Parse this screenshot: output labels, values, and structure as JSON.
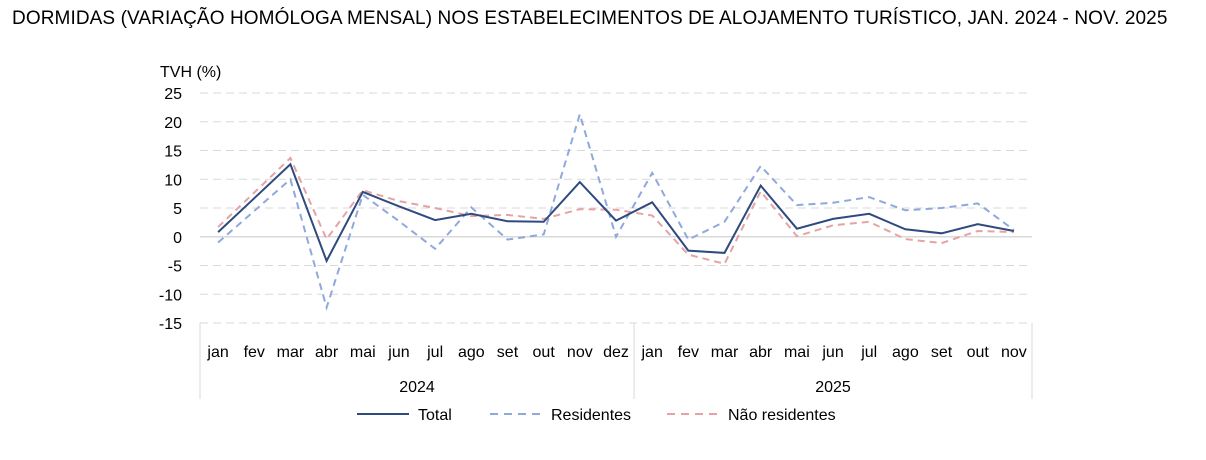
{
  "title": "DORMIDAS (VARIAÇÃO HOMÓLOGA MENSAL) NOS ESTABELECIMENTOS DE ALOJAMENTO TURÍSTICO, JAN. 2024 - NOV. 2025",
  "chart_data": {
    "type": "line",
    "title": "DORMIDAS (VARIAÇÃO HOMÓLOGA MENSAL) NOS ESTABELECIMENTOS DE ALOJAMENTO TURÍSTICO, JAN. 2024 - NOV. 2025",
    "ylabel": "TVH (%)",
    "xlabel": "",
    "ylim": [
      -15,
      25
    ],
    "yticks": [
      25,
      20,
      15,
      10,
      5,
      0,
      -5,
      -10,
      -15
    ],
    "grid": true,
    "legend_position": "bottom",
    "year_groups": [
      {
        "label": "2024",
        "months": 12
      },
      {
        "label": "2025",
        "months": 11
      }
    ],
    "categories": [
      "jan",
      "fev",
      "mar",
      "abr",
      "mai",
      "jun",
      "jul",
      "ago",
      "set",
      "out",
      "nov",
      "dez",
      "jan",
      "fev",
      "mar",
      "abr",
      "mai",
      "jun",
      "jul",
      "ago",
      "set",
      "out",
      "nov"
    ],
    "series": [
      {
        "name": "Total",
        "color": "#2F4A7F",
        "dash": "solid",
        "values": [
          0.8,
          6.7,
          12.6,
          -4.2,
          7.8,
          5.3,
          2.9,
          4.0,
          2.7,
          2.6,
          9.5,
          2.8,
          6.0,
          -2.4,
          -2.8,
          8.9,
          1.4,
          3.1,
          4.0,
          1.3,
          0.6,
          2.2,
          1.0
        ]
      },
      {
        "name": "Residentes",
        "color": "#8EA9DB",
        "dash": "dashed",
        "values": [
          -1.0,
          4.5,
          10.0,
          -12.3,
          7.3,
          2.7,
          -2.1,
          5.1,
          -0.5,
          0.4,
          21.3,
          0.0,
          11.1,
          -0.5,
          2.6,
          12.3,
          5.5,
          5.9,
          6.9,
          4.6,
          5.0,
          5.8,
          1.2
        ]
      },
      {
        "name": "Não residentes",
        "color": "#E6A3A5",
        "dash": "dashed",
        "values": [
          1.7,
          7.7,
          13.7,
          -0.4,
          8.1,
          6.2,
          5.0,
          3.6,
          3.8,
          3.1,
          4.8,
          4.7,
          3.7,
          -3.1,
          -4.7,
          7.9,
          0.1,
          2.0,
          2.6,
          -0.4,
          -1.1,
          1.0,
          0.8
        ]
      }
    ]
  }
}
